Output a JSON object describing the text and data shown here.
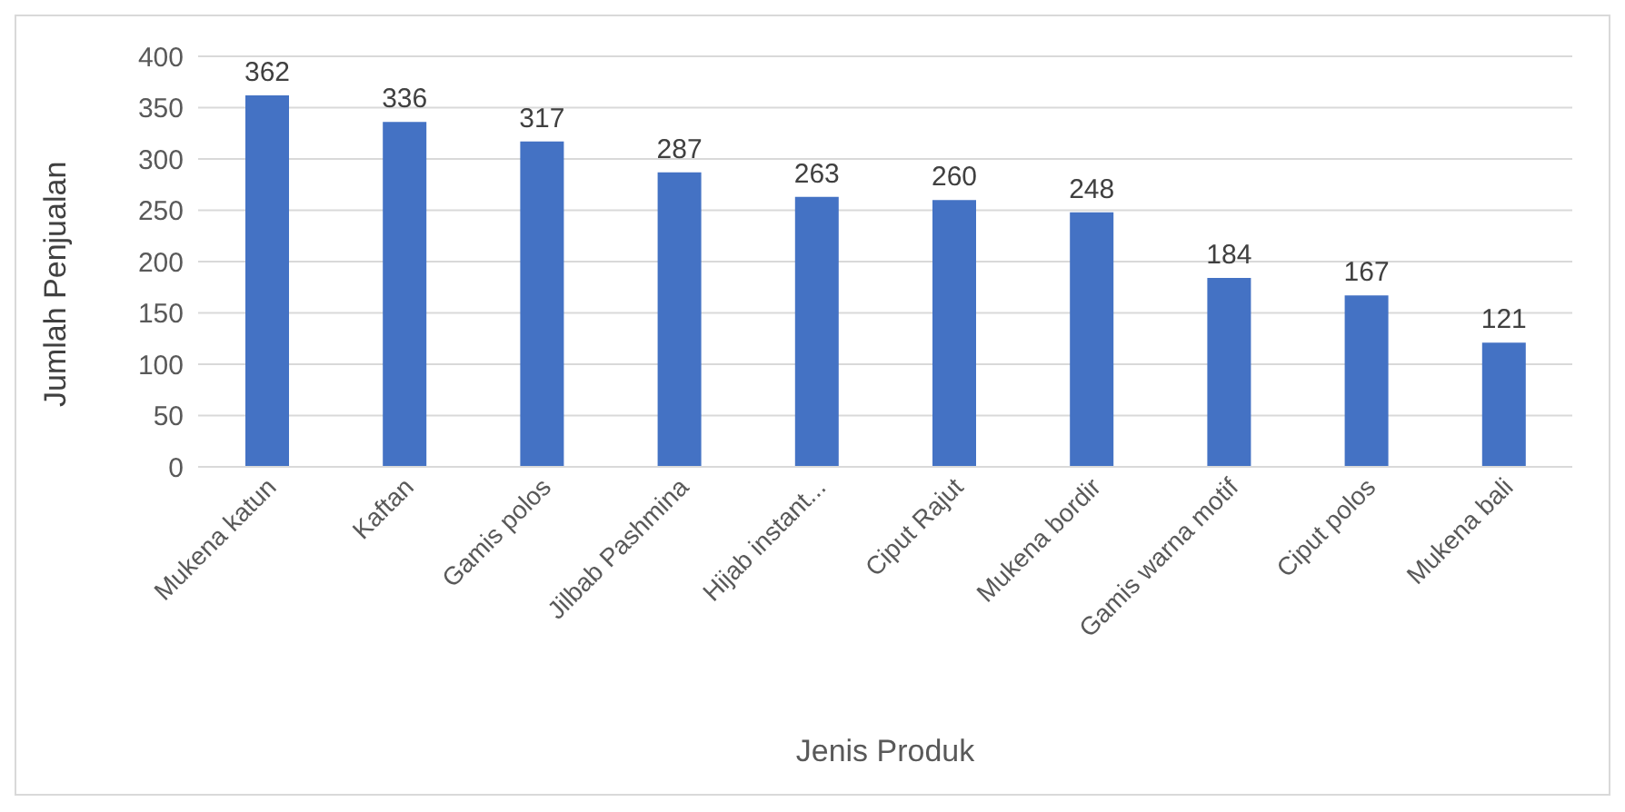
{
  "chart_data": {
    "type": "bar",
    "xlabel": "Jenis Produk",
    "ylabel": "Jumlah Penjualan",
    "categories": [
      "Mukena katun",
      "Kaftan",
      "Gamis polos",
      "Jilbab Pashmina",
      "Hijab instant...",
      "Ciput Rajut",
      "Mukena bordir",
      "Gamis warna motif",
      "Ciput polos",
      "Mukena bali"
    ],
    "values": [
      362,
      336,
      317,
      287,
      263,
      260,
      248,
      184,
      167,
      121
    ],
    "color": "#4472c4",
    "ylim": [
      0,
      400
    ],
    "yticks": [
      0,
      50,
      100,
      150,
      200,
      250,
      300,
      350,
      400
    ],
    "grid": "y",
    "data_labels": true
  }
}
